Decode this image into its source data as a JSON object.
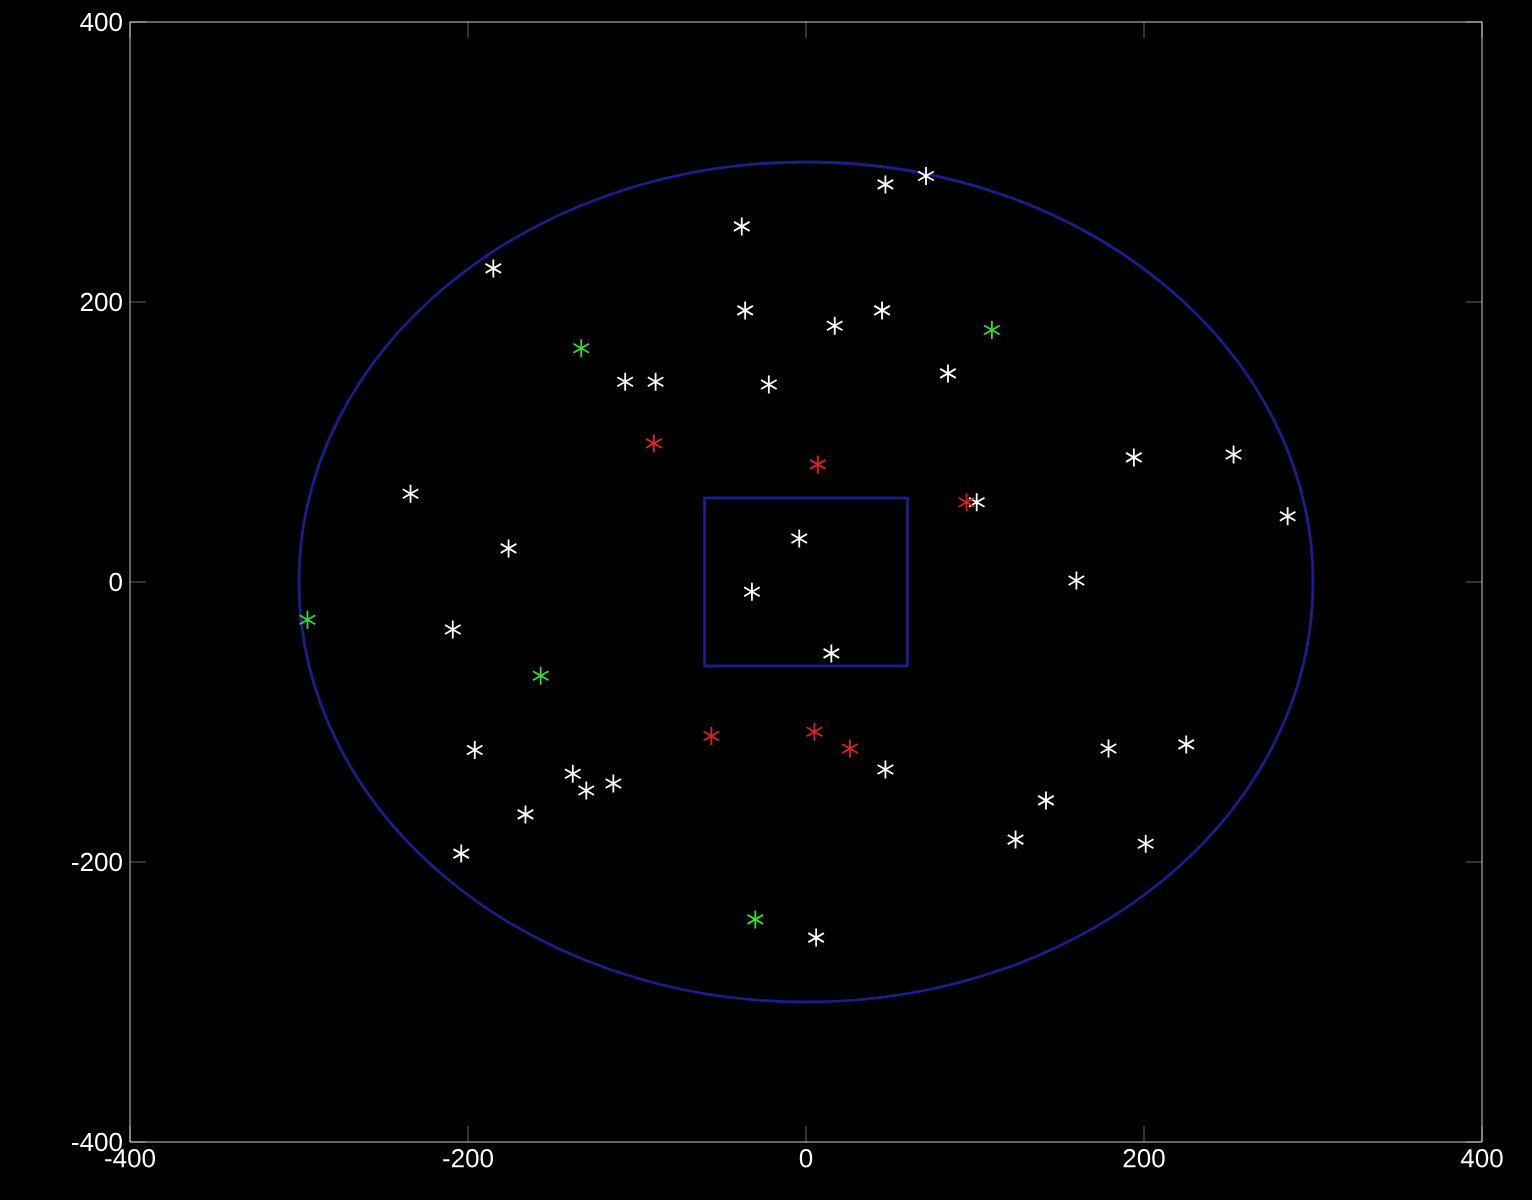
{
  "chart_data": {
    "type": "scatter",
    "marker": "cross",
    "grid": false,
    "xlim": [
      -400,
      400
    ],
    "ylim": [
      -400,
      400
    ],
    "xticks": [
      -400,
      -200,
      0,
      200,
      400
    ],
    "yticks": [
      -400,
      -200,
      0,
      200,
      400
    ],
    "series": [
      {
        "color": "#ffffff",
        "x": [
          -38,
          47,
          71,
          -185,
          -36,
          17,
          45,
          -107,
          -89,
          -22,
          84,
          -234,
          -176,
          -4,
          -32,
          -209,
          15,
          101,
          194,
          253,
          285,
          160,
          -196,
          -138,
          -130,
          -114,
          -166,
          -204,
          47,
          179,
          225,
          142,
          124,
          201,
          6
        ],
        "values": [
          254,
          284,
          290,
          224,
          194,
          183,
          194,
          143,
          143,
          141,
          149,
          63,
          24,
          31,
          -7,
          -34,
          -51,
          57,
          89,
          91,
          47,
          1,
          -120,
          -137,
          -149,
          -144,
          -166,
          -194,
          -134,
          -119,
          -116,
          -156,
          -184,
          -187,
          -254
        ]
      },
      {
        "color": "#33dd33",
        "x": [
          110,
          -133,
          -295,
          -157,
          -30
        ],
        "values": [
          180,
          167,
          -27,
          -67,
          -241
        ]
      },
      {
        "color": "#dd2222",
        "x": [
          -90,
          7,
          95,
          -56,
          5,
          26
        ],
        "values": [
          99,
          84,
          57,
          -110,
          -107,
          -119
        ]
      }
    ]
  }
}
